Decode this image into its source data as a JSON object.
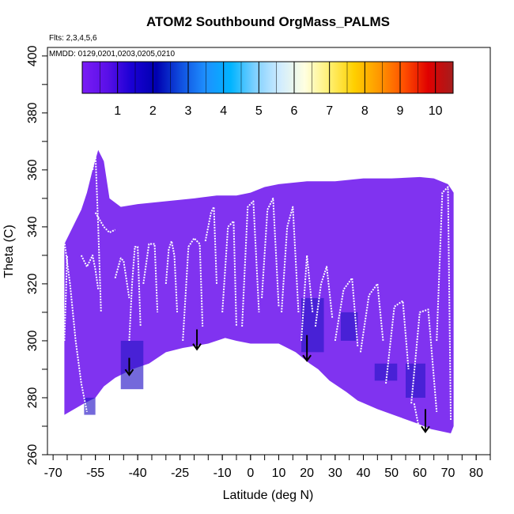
{
  "chart_data": {
    "type": "heatmap",
    "title": "ATOM2 Southbound OrgMass_PALMS",
    "flights_note": "Flts: 2,3,4,5,6",
    "dates_note": "MMDD: 0129,0201,0203,0205,0210",
    "xlabel": "Latitude (deg N)",
    "ylabel": "Theta (C)",
    "xlim": [
      -72,
      85
    ],
    "ylim": [
      260,
      403
    ],
    "x_ticks": [
      -70,
      -55,
      -40,
      -25,
      -10,
      0,
      10,
      20,
      30,
      40,
      50,
      60,
      70,
      80
    ],
    "y_ticks": [
      260,
      280,
      300,
      320,
      340,
      360,
      380,
      400
    ],
    "colorbar": {
      "range": [
        0,
        10.5
      ],
      "ticks": [
        1,
        2,
        3,
        4,
        5,
        6,
        7,
        8,
        9,
        10
      ],
      "colors": [
        "#7a1cf5",
        "#5a10e8",
        "#1a00d4",
        "#0000b0",
        "#1050e0",
        "#1e90ff",
        "#00b4ff",
        "#80d0ff",
        "#d0ecff",
        "#ffffe0",
        "#fff070",
        "#ffd000",
        "#ff9800",
        "#ff5000",
        "#e00000",
        "#a51d1d"
      ]
    },
    "field_color": "#8033f0",
    "dense_color": "#2a18c8",
    "bottom_boundary": [
      [
        -66,
        274
      ],
      [
        -59,
        278
      ],
      [
        -55,
        280
      ],
      [
        -52,
        284
      ],
      [
        -48,
        287
      ],
      [
        -42,
        290
      ],
      [
        -36,
        292
      ],
      [
        -30,
        296
      ],
      [
        -24,
        297.5
      ],
      [
        -15,
        299
      ],
      [
        -9,
        301
      ],
      [
        -5,
        300
      ],
      [
        0,
        299
      ],
      [
        5,
        299
      ],
      [
        10,
        299
      ],
      [
        16,
        296
      ],
      [
        21,
        292
      ],
      [
        24,
        290
      ],
      [
        28,
        286
      ],
      [
        34,
        282
      ],
      [
        38,
        279
      ],
      [
        45,
        276
      ],
      [
        52,
        273.5
      ],
      [
        59,
        271
      ],
      [
        64,
        269
      ],
      [
        71,
        267.5
      ]
    ],
    "top_boundary": [
      [
        -66,
        334
      ],
      [
        -64,
        338
      ],
      [
        -62,
        342
      ],
      [
        -60,
        346
      ],
      [
        -58,
        352
      ],
      [
        -56,
        360
      ],
      [
        -54,
        367
      ],
      [
        -52,
        363
      ],
      [
        -50,
        350
      ],
      [
        -46,
        347
      ],
      [
        -40,
        348
      ],
      [
        -30,
        349
      ],
      [
        -20,
        350
      ],
      [
        -12,
        351
      ],
      [
        -5,
        351
      ],
      [
        0,
        352
      ],
      [
        5,
        354
      ],
      [
        10,
        355
      ],
      [
        20,
        356
      ],
      [
        30,
        356
      ],
      [
        40,
        357
      ],
      [
        50,
        357
      ],
      [
        60,
        357.5
      ],
      [
        65,
        357
      ],
      [
        70,
        355
      ],
      [
        72,
        352
      ],
      [
        72,
        270
      ],
      [
        71,
        267.5
      ]
    ],
    "dense_patches": [
      {
        "lon": [
          -46,
          -38
        ],
        "lat": [
          283,
          300
        ]
      },
      {
        "lon": [
          -59,
          -55
        ],
        "lat": [
          274,
          280
        ]
      },
      {
        "lon": [
          18,
          26
        ],
        "lat": [
          296,
          315
        ]
      },
      {
        "lon": [
          32,
          38
        ],
        "lat": [
          300,
          310
        ]
      },
      {
        "lon": [
          55,
          62
        ],
        "lat": [
          280,
          292
        ]
      },
      {
        "lon": [
          44,
          52
        ],
        "lat": [
          286,
          292
        ]
      }
    ],
    "tracks": [
      {
        "x": [
          -66,
          -64,
          -62,
          -60,
          -58
        ],
        "y": [
          335,
          320,
          300,
          285,
          275
        ]
      },
      {
        "x": [
          -60,
          -58,
          -56,
          -55,
          -54
        ],
        "y": [
          330,
          326,
          330,
          325,
          318
        ]
      },
      {
        "x": [
          -56,
          -55,
          -54,
          -53
        ],
        "y": [
          360,
          366,
          340,
          310
        ]
      },
      {
        "x": [
          -55,
          -52,
          -50,
          -48
        ],
        "y": [
          345,
          340,
          338,
          339
        ]
      },
      {
        "x": [
          -48,
          -46,
          -45,
          -43
        ],
        "y": [
          322,
          329,
          328,
          315
        ]
      },
      {
        "x": [
          -43,
          -42,
          -41,
          -40,
          -39
        ],
        "y": [
          300,
          320,
          333,
          333,
          305
        ]
      },
      {
        "x": [
          -38,
          -36,
          -34,
          -33
        ],
        "y": [
          320,
          334,
          334,
          310
        ]
      },
      {
        "x": [
          -30,
          -29,
          -28,
          -27,
          -26
        ],
        "y": [
          320,
          332,
          335,
          330,
          310
        ]
      },
      {
        "x": [
          -24,
          -22,
          -20,
          -18,
          -17
        ],
        "y": [
          300,
          333,
          336,
          334,
          305
        ]
      },
      {
        "x": [
          -16,
          -14,
          -13,
          -12
        ],
        "y": [
          335,
          345,
          347,
          320
        ]
      },
      {
        "x": [
          -10,
          -8,
          -6,
          -5
        ],
        "y": [
          310,
          340,
          342,
          305
        ]
      },
      {
        "x": [
          -3,
          -1,
          1,
          3
        ],
        "y": [
          305,
          347,
          349,
          310
        ]
      },
      {
        "x": [
          4,
          6,
          8,
          10
        ],
        "y": [
          315,
          346,
          350,
          312
        ]
      },
      {
        "x": [
          11,
          13,
          15,
          17
        ],
        "y": [
          310,
          340,
          347,
          310
        ]
      },
      {
        "x": [
          18,
          20,
          22
        ],
        "y": [
          300,
          330,
          310
        ]
      },
      {
        "x": [
          23,
          25,
          27,
          29
        ],
        "y": [
          305,
          320,
          326,
          308
        ]
      },
      {
        "x": [
          30,
          33,
          36,
          38
        ],
        "y": [
          300,
          318,
          322,
          298
        ]
      },
      {
        "x": [
          39,
          42,
          45,
          47
        ],
        "y": [
          296,
          316,
          320,
          300
        ]
      },
      {
        "x": [
          48,
          51,
          54,
          56
        ],
        "y": [
          285,
          312,
          314,
          290
        ]
      },
      {
        "x": [
          57,
          60,
          63,
          66
        ],
        "y": [
          278,
          310,
          311,
          275
        ]
      },
      {
        "x": [
          66,
          68,
          70,
          71
        ],
        "y": [
          300,
          352,
          354,
          272
        ]
      },
      {
        "x": [
          -66,
          -65
        ],
        "y": [
          300,
          330
        ]
      },
      {
        "x": [
          58,
          60
        ],
        "y": [
          278,
          268
        ]
      }
    ],
    "arrows": [
      {
        "x": -43,
        "y_start": 294,
        "y_end": 288
      },
      {
        "x": -19,
        "y_start": 304,
        "y_end": 297
      },
      {
        "x": 20,
        "y_start": 302,
        "y_end": 293
      },
      {
        "x": 62,
        "y_start": 276,
        "y_end": 268
      }
    ]
  }
}
